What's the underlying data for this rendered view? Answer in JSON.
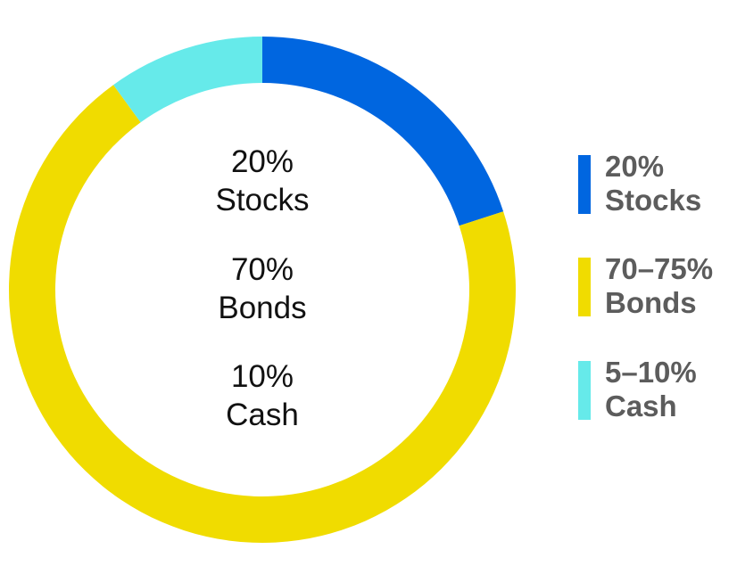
{
  "chart_data": {
    "type": "pie",
    "variant": "donut",
    "slices": [
      {
        "label": "Stocks",
        "value": 20,
        "color": "#0066e0"
      },
      {
        "label": "Bonds",
        "value": 70,
        "color": "#f0dc00"
      },
      {
        "label": "Cash",
        "value": 10,
        "color": "#66eaea"
      }
    ],
    "center_labels": [
      {
        "value": "20%",
        "name": "Stocks"
      },
      {
        "value": "70%",
        "name": "Bonds"
      },
      {
        "value": "10%",
        "name": "Cash"
      }
    ],
    "legend_position": "right",
    "legend": [
      {
        "value": "20%",
        "name": "Stocks",
        "color": "#0066e0"
      },
      {
        "value": "70–75%",
        "name": "Bonds",
        "color": "#f0dc00"
      },
      {
        "value": "5–10%",
        "name": "Cash",
        "color": "#66eaea"
      }
    ]
  }
}
